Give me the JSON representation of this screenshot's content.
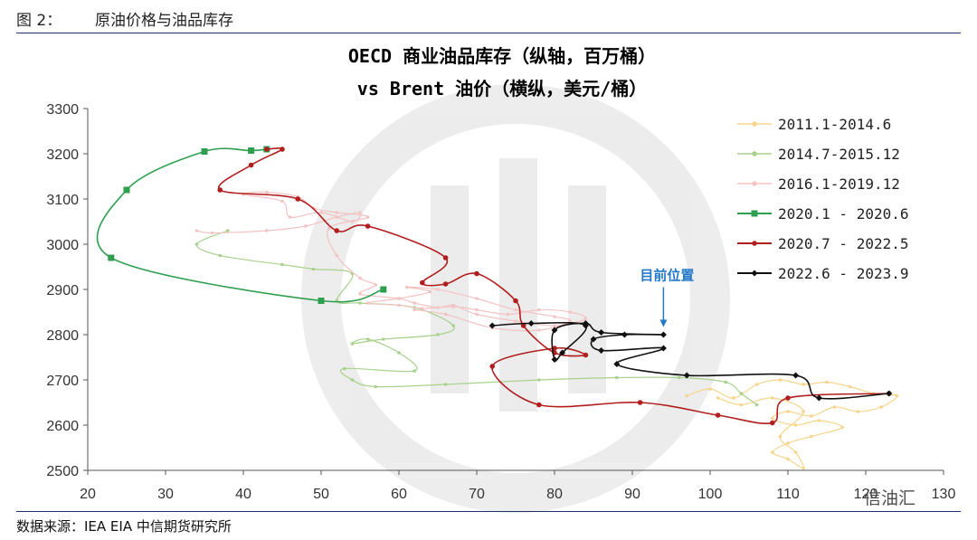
{
  "header": {
    "figure_label": "图 2：",
    "figure_title": "原油价格与油品库存"
  },
  "footer": {
    "source": "数据来源：IEA EIA 中信期货研究所",
    "watermark": "信油汇"
  },
  "chart_data": {
    "type": "line",
    "title": "OECD 商业油品库存（纵轴，百万桶）",
    "subtitle": "vs Brent 油价（横纵，美元/桶）",
    "xlim": [
      20,
      130
    ],
    "ylim": [
      2500,
      3300
    ],
    "x_ticks": [
      "20",
      "30",
      "40",
      "50",
      "60",
      "70",
      "80",
      "90",
      "100",
      "110",
      "120",
      "130"
    ],
    "y_ticks": [
      "2500",
      "2600",
      "2700",
      "2800",
      "2900",
      "3000",
      "3100",
      "3200",
      "3300"
    ],
    "legend_position": "top-right",
    "annotation": {
      "text": "目前位置",
      "x": 94,
      "y": 2805
    },
    "series": [
      {
        "name": "2011.1-2014.6",
        "color": "#f7d58c",
        "points": [
          [
            97,
            2665
          ],
          [
            100,
            2680
          ],
          [
            103,
            2660
          ],
          [
            106,
            2690
          ],
          [
            109,
            2700
          ],
          [
            112,
            2690
          ],
          [
            115,
            2695
          ],
          [
            118,
            2685
          ],
          [
            121,
            2670
          ],
          [
            124,
            2665
          ],
          [
            122,
            2640
          ],
          [
            119,
            2630
          ],
          [
            116,
            2640
          ],
          [
            113,
            2620
          ],
          [
            110,
            2630
          ],
          [
            108,
            2615
          ],
          [
            111,
            2600
          ],
          [
            114,
            2610
          ],
          [
            117,
            2595
          ],
          [
            113,
            2575
          ],
          [
            110,
            2560
          ],
          [
            108,
            2540
          ],
          [
            110,
            2525
          ],
          [
            112,
            2505
          ],
          [
            111,
            2540
          ],
          [
            109,
            2575
          ],
          [
            112,
            2630
          ],
          [
            108,
            2660
          ],
          [
            104,
            2645
          ],
          [
            101,
            2660
          ]
        ]
      },
      {
        "name": "2014.7-2015.12",
        "color": "#a8d18d",
        "points": [
          [
            106,
            2645
          ],
          [
            104,
            2670
          ],
          [
            102,
            2695
          ],
          [
            96,
            2705
          ],
          [
            88,
            2705
          ],
          [
            78,
            2700
          ],
          [
            66,
            2690
          ],
          [
            57,
            2685
          ],
          [
            54,
            2700
          ],
          [
            53,
            2725
          ],
          [
            62,
            2720
          ],
          [
            60,
            2760
          ],
          [
            56,
            2790
          ],
          [
            54,
            2780
          ],
          [
            58,
            2790
          ],
          [
            65,
            2800
          ],
          [
            67,
            2820
          ],
          [
            62,
            2860
          ],
          [
            55,
            2870
          ],
          [
            52,
            2875
          ],
          [
            54,
            2935
          ],
          [
            49,
            2945
          ],
          [
            45,
            2955
          ],
          [
            37,
            2975
          ],
          [
            34,
            3000
          ],
          [
            38,
            3030
          ]
        ]
      },
      {
        "name": "2016.1-2019.12",
        "color": "#f4c3c3",
        "points": [
          [
            34,
            3030
          ],
          [
            36,
            3025
          ],
          [
            43,
            3030
          ],
          [
            48,
            3040
          ],
          [
            52,
            3060
          ],
          [
            55,
            3070
          ],
          [
            54,
            3050
          ],
          [
            50,
            3070
          ],
          [
            46,
            3060
          ],
          [
            45,
            3095
          ],
          [
            40,
            3110
          ],
          [
            43,
            3115
          ],
          [
            47,
            3105
          ],
          [
            49,
            3080
          ],
          [
            52,
            3070
          ],
          [
            56,
            3060
          ],
          [
            51,
            3035
          ],
          [
            52,
            2975
          ],
          [
            55,
            2925
          ],
          [
            57,
            2910
          ],
          [
            55,
            2890
          ],
          [
            60,
            2880
          ],
          [
            62,
            2870
          ],
          [
            65,
            2860
          ],
          [
            67,
            2865
          ],
          [
            70,
            2845
          ],
          [
            75,
            2830
          ],
          [
            80,
            2820
          ],
          [
            84,
            2835
          ],
          [
            82,
            2850
          ],
          [
            78,
            2855
          ],
          [
            74,
            2845
          ],
          [
            70,
            2855
          ],
          [
            67,
            2862
          ],
          [
            63,
            2858
          ],
          [
            60,
            2865
          ],
          [
            56,
            2870
          ],
          [
            60,
            2880
          ],
          [
            64,
            2895
          ],
          [
            61,
            2905
          ],
          [
            65,
            2900
          ],
          [
            70,
            2880
          ],
          [
            75,
            2855
          ],
          [
            80,
            2840
          ],
          [
            82,
            2830
          ],
          [
            78,
            2810
          ],
          [
            72,
            2815
          ],
          [
            66,
            2845
          ],
          [
            62,
            2855
          ]
        ]
      },
      {
        "name": "2020.1 - 2020.6",
        "color": "#2e9f4e",
        "marker": "square",
        "points": [
          [
            58,
            2900
          ],
          [
            50,
            2875
          ],
          [
            23,
            2970
          ],
          [
            25,
            3120
          ],
          [
            35,
            3205
          ],
          [
            41,
            3207
          ],
          [
            43,
            3210
          ]
        ]
      },
      {
        "name": "2020.7 - 2022.5",
        "color": "#b21e1e",
        "marker": "circle",
        "points": [
          [
            43,
            3210
          ],
          [
            45,
            3210
          ],
          [
            41,
            3175
          ],
          [
            37,
            3120
          ],
          [
            47,
            3100
          ],
          [
            52,
            3030
          ],
          [
            56,
            3040
          ],
          [
            66,
            2970
          ],
          [
            63,
            2915
          ],
          [
            66,
            2912
          ],
          [
            70,
            2935
          ],
          [
            75,
            2875
          ],
          [
            76,
            2820
          ],
          [
            80,
            2760
          ],
          [
            84,
            2755
          ],
          [
            80,
            2770
          ],
          [
            72,
            2730
          ],
          [
            78,
            2645
          ],
          [
            91,
            2650
          ],
          [
            101,
            2622
          ],
          [
            108,
            2605
          ],
          [
            110,
            2660
          ],
          [
            123,
            2670
          ]
        ]
      },
      {
        "name": "2022.6 - 2023.9",
        "color": "#111111",
        "marker": "diamond",
        "points": [
          [
            123,
            2670
          ],
          [
            114,
            2660
          ],
          [
            111,
            2710
          ],
          [
            97,
            2710
          ],
          [
            88,
            2735
          ],
          [
            94,
            2770
          ],
          [
            86,
            2765
          ],
          [
            85,
            2790
          ],
          [
            89,
            2800
          ],
          [
            94,
            2800
          ],
          [
            86,
            2805
          ],
          [
            84,
            2825
          ],
          [
            80,
            2810
          ],
          [
            80,
            2745
          ],
          [
            81,
            2760
          ],
          [
            84,
            2820
          ],
          [
            77,
            2825
          ],
          [
            72,
            2820
          ]
        ]
      }
    ]
  }
}
